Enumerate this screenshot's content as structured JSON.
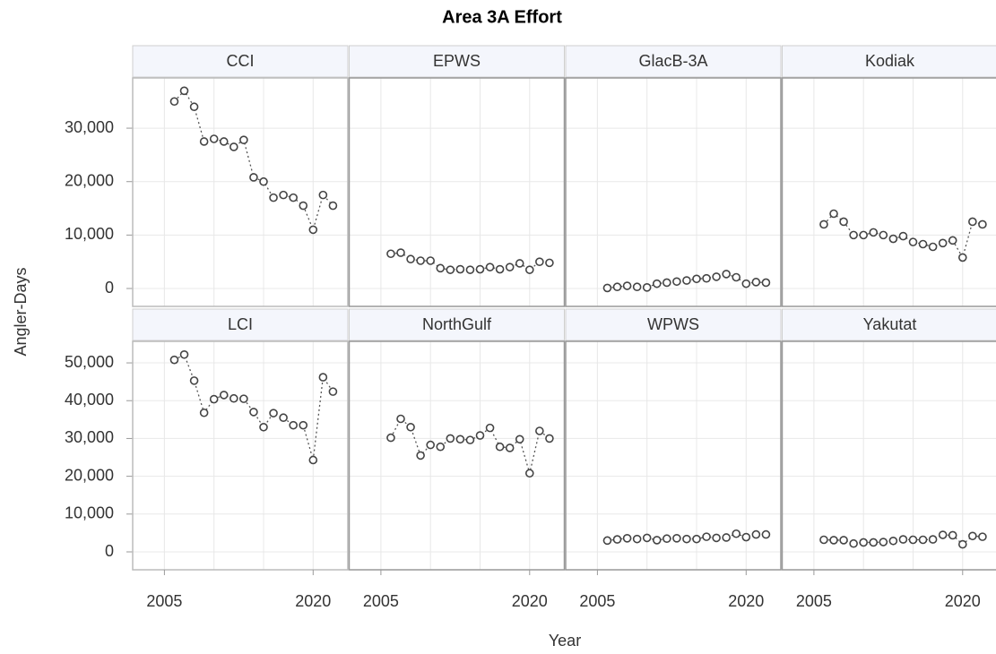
{
  "chart_data": {
    "type": "line",
    "title": "Area 3A Effort",
    "xlabel": "Year",
    "ylabel": "Angler-Days",
    "color": "#444444",
    "marker": "circle",
    "linestyle": "dotted",
    "grid": true,
    "x": [
      2006,
      2007,
      2008,
      2009,
      2010,
      2011,
      2012,
      2013,
      2014,
      2015,
      2016,
      2017,
      2018,
      2019,
      2020,
      2021,
      2022
    ],
    "xlim": [
      2001.8,
      2023.5
    ],
    "xticks": [
      2005,
      2020
    ],
    "xgrid": [
      2005,
      2010,
      2015,
      2020
    ],
    "rows": [
      {
        "ylim": [
          -3350,
          39400
        ],
        "yticks": [
          0,
          {
            "value": 10000,
            "label": "10,000"
          },
          {
            "value": 20000,
            "label": "20,000"
          },
          {
            "value": 30000,
            "label": "30,000"
          }
        ],
        "panels": [
          {
            "name": "CCI",
            "values": [
              35000,
              37000,
              34000,
              27500,
              28000,
              27500,
              26500,
              27800,
              20800,
              20000,
              17000,
              17500,
              17000,
              15500,
              11000,
              17500,
              15500
            ]
          },
          {
            "name": "EPWS",
            "values": [
              6500,
              6700,
              5500,
              5200,
              5200,
              3800,
              3500,
              3600,
              3500,
              3600,
              4000,
              3600,
              4000,
              4700,
              3500,
              5000,
              4800
            ]
          },
          {
            "name": "GlacB-3A",
            "values": [
              100,
              300,
              500,
              300,
              200,
              900,
              1100,
              1300,
              1500,
              1800,
              1900,
              2200,
              2700,
              2100,
              900,
              1200,
              1100
            ]
          },
          {
            "name": "Kodiak",
            "values": [
              12000,
              14000,
              12500,
              10000,
              10000,
              10500,
              10000,
              9300,
              9800,
              8700,
              8300,
              7800,
              8500,
              9000,
              5800,
              12500,
              12000
            ]
          }
        ]
      },
      {
        "ylim": [
          -4740,
          55700
        ],
        "yticks": [
          0,
          {
            "value": 10000,
            "label": "10,000"
          },
          {
            "value": 20000,
            "label": "20,000"
          },
          {
            "value": 30000,
            "label": "30,000"
          },
          {
            "value": 40000,
            "label": "40,000"
          },
          {
            "value": 50000,
            "label": "50,000"
          }
        ],
        "panels": [
          {
            "name": "LCI",
            "values": [
              50800,
              52200,
              45300,
              36800,
              40400,
              41500,
              40600,
              40500,
              37000,
              33000,
              36700,
              35500,
              33500,
              33500,
              24300,
              46200,
              42400
            ]
          },
          {
            "name": "NorthGulf",
            "values": [
              30200,
              35200,
              33000,
              25500,
              28300,
              27800,
              30000,
              29800,
              29600,
              30800,
              32800,
              27800,
              27500,
              29800,
              20800,
              32000,
              30000
            ]
          },
          {
            "name": "WPWS",
            "values": [
              3000,
              3300,
              3600,
              3400,
              3700,
              3100,
              3500,
              3600,
              3400,
              3400,
              4000,
              3700,
              3800,
              4800,
              3900,
              4600,
              4600
            ]
          },
          {
            "name": "Yakutat",
            "values": [
              3200,
              3100,
              3100,
              2200,
              2500,
              2500,
              2600,
              2900,
              3300,
              3200,
              3200,
              3300,
              4500,
              4400,
              2000,
              4200,
              4000
            ]
          }
        ]
      }
    ]
  }
}
